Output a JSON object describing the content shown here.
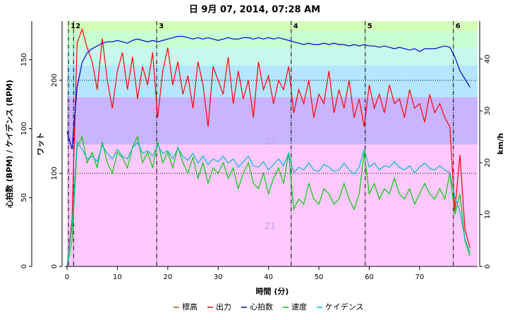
{
  "chart_data": {
    "type": "line",
    "title": "日 9月 07, 2014, 07:28 AM",
    "xlabel": "時間 (分)",
    "ylabel": "心拍数 (BPM) / ケイデンス (RPM)",
    "y2label": "ワット",
    "y3label": "km/h",
    "xlim": [
      0,
      81.5
    ],
    "xticks": [
      0,
      10,
      20,
      30,
      40,
      50,
      60,
      70
    ],
    "ylim": [
      0,
      178
    ],
    "yticks": [
      0,
      50,
      100,
      150
    ],
    "y2lim": [
      0,
      263.6
    ],
    "y2ticks": [
      0,
      100,
      200
    ],
    "y3lim": [
      0,
      47.3
    ],
    "y3ticks": [
      0,
      10,
      20,
      30,
      40
    ],
    "grid": true,
    "zones": [
      {
        "label": "Z1",
        "from": 0,
        "to": 131,
        "color": "#ffc8ff"
      },
      {
        "label": "Z2",
        "from": 131,
        "to": 182,
        "color": "#c8b4ff"
      },
      {
        "from": 182,
        "to": 216,
        "color": "#b4e6ff"
      },
      {
        "from": 216,
        "to": 235,
        "color": "#c8f8ec"
      },
      {
        "from": 235,
        "to": 253,
        "color": "#c8ffd2"
      },
      {
        "from": 253,
        "to": 263.6,
        "color": "#d4ffb8"
      }
    ],
    "laps": [
      {
        "label": "1",
        "x": 0.3
      },
      {
        "label": "2",
        "x": 1.3
      },
      {
        "label": "3",
        "x": 17.8
      },
      {
        "label": "4",
        "x": 44.5
      },
      {
        "label": "5",
        "x": 59.2
      },
      {
        "label": "6",
        "x": 76.7
      }
    ],
    "x": [
      0,
      1,
      2,
      3,
      4,
      5,
      6,
      7,
      8,
      9,
      10,
      11,
      12,
      13,
      14,
      15,
      16,
      17,
      18,
      19,
      20,
      21,
      22,
      23,
      24,
      25,
      26,
      27,
      28,
      29,
      30,
      31,
      32,
      33,
      34,
      35,
      36,
      37,
      38,
      39,
      40,
      41,
      42,
      43,
      44,
      45,
      46,
      47,
      48,
      49,
      50,
      51,
      52,
      53,
      54,
      55,
      56,
      57,
      58,
      59,
      60,
      61,
      62,
      63,
      64,
      65,
      66,
      67,
      68,
      69,
      70,
      71,
      72,
      73,
      74,
      75,
      76,
      77,
      78,
      79,
      80
    ],
    "series": [
      {
        "name": "標高",
        "color": "#8b5a2b",
        "values": null
      },
      {
        "name": "出力",
        "color": "#ff0000",
        "axis": "y2",
        "values": [
          0,
          50,
          240,
          255,
          235,
          220,
          190,
          245,
          200,
          170,
          210,
          230,
          190,
          225,
          180,
          215,
          195,
          230,
          160,
          210,
          235,
          195,
          220,
          185,
          205,
          170,
          220,
          195,
          150,
          215,
          200,
          185,
          225,
          175,
          210,
          180,
          200,
          160,
          220,
          190,
          205,
          175,
          200,
          190,
          215,
          165,
          190,
          175,
          200,
          160,
          185,
          175,
          210,
          165,
          190,
          170,
          200,
          160,
          180,
          150,
          195,
          170,
          185,
          165,
          195,
          175,
          180,
          160,
          190,
          170,
          175,
          155,
          185,
          165,
          175,
          160,
          150,
          60,
          120,
          40,
          20
        ]
      },
      {
        "name": "心拍数",
        "color": "#0000cc",
        "axis": "y",
        "values": [
          98,
          85,
          130,
          148,
          155,
          158,
          160,
          162,
          163,
          163,
          164,
          163,
          162,
          164,
          165,
          164,
          163,
          164,
          163,
          164,
          165,
          166,
          167,
          167,
          166,
          165,
          166,
          165,
          166,
          165,
          164,
          165,
          166,
          165,
          165,
          166,
          166,
          165,
          166,
          165,
          166,
          165,
          166,
          165,
          164,
          163,
          162,
          161,
          162,
          161,
          161,
          162,
          161,
          162,
          161,
          161,
          160,
          161,
          160,
          161,
          160,
          160,
          159,
          160,
          159,
          158,
          159,
          158,
          157,
          158,
          156,
          158,
          158,
          158,
          159,
          160,
          159,
          152,
          142,
          136,
          130
        ]
      },
      {
        "name": "速度",
        "color": "#00cc00",
        "axis": "y3",
        "values": [
          0,
          5,
          23,
          25,
          20,
          22,
          19,
          24,
          20,
          18,
          22,
          21,
          19,
          23,
          25,
          20,
          22,
          19,
          24,
          20,
          22,
          19,
          23,
          20,
          18,
          21,
          17,
          20,
          16,
          19,
          18,
          20,
          17,
          19,
          15,
          18,
          20,
          16,
          15,
          18,
          14,
          17,
          19,
          16,
          22,
          11,
          13,
          12,
          16,
          13,
          12,
          15,
          14,
          12,
          13,
          16,
          13,
          11,
          14,
          22,
          14,
          16,
          13,
          15,
          14,
          17,
          14,
          13,
          15,
          12,
          14,
          16,
          14,
          13,
          15,
          13,
          18,
          10,
          14,
          5,
          2
        ]
      },
      {
        "name": "ケイデンス",
        "color": "#00bbcc",
        "axis": "y",
        "values": [
          0,
          30,
          90,
          85,
          78,
          80,
          76,
          88,
          82,
          78,
          85,
          80,
          78,
          86,
          90,
          82,
          84,
          80,
          88,
          82,
          84,
          78,
          86,
          80,
          77,
          82,
          75,
          80,
          74,
          78,
          76,
          80,
          75,
          78,
          72,
          76,
          80,
          73,
          72,
          76,
          70,
          74,
          78,
          73,
          82,
          68,
          72,
          70,
          75,
          70,
          69,
          74,
          72,
          69,
          70,
          75,
          70,
          67,
          72,
          85,
          72,
          75,
          70,
          73,
          72,
          76,
          72,
          70,
          73,
          68,
          72,
          75,
          71,
          70,
          73,
          70,
          68,
          50,
          40,
          20,
          10
        ]
      }
    ]
  }
}
